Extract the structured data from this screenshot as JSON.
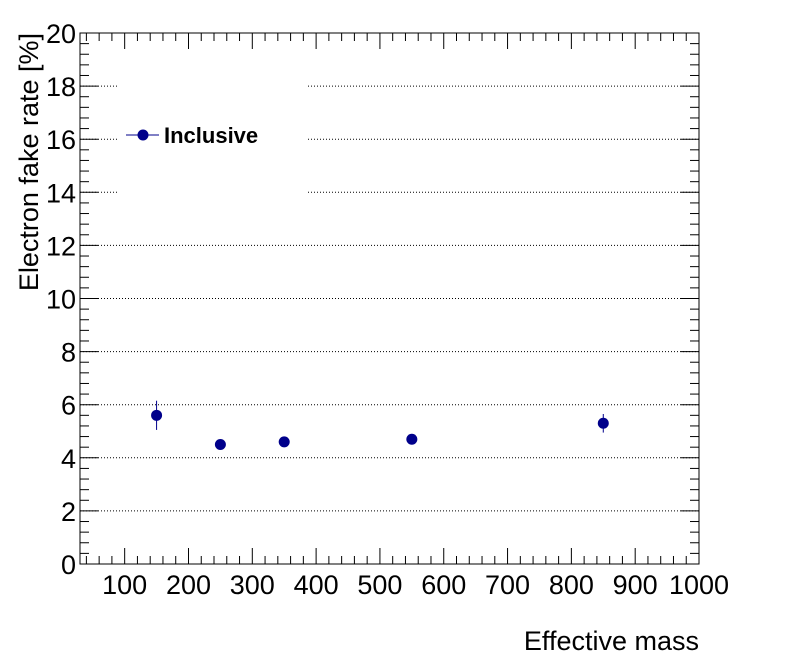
{
  "chart_data": {
    "type": "scatter",
    "xlabel": "Effective mass",
    "ylabel": "Electron fake rate [%]",
    "xlim": [
      30,
      1000
    ],
    "ylim": [
      0,
      20
    ],
    "x_ticks": [
      100,
      200,
      300,
      400,
      500,
      600,
      700,
      800,
      900,
      1000
    ],
    "y_ticks": [
      0,
      2,
      4,
      6,
      8,
      10,
      12,
      14,
      16,
      18,
      20
    ],
    "grid": "horizontal dotted at major y ticks",
    "legend": {
      "position": "top-left",
      "entries": [
        "Inclusive"
      ]
    },
    "series": [
      {
        "name": "Inclusive",
        "color": "#00008b",
        "marker": "filled-circle",
        "points": [
          {
            "x": 150,
            "y": 5.6,
            "yerr": 0.55
          },
          {
            "x": 250,
            "y": 4.5,
            "yerr": 0.12
          },
          {
            "x": 350,
            "y": 4.6,
            "yerr": 0.12
          },
          {
            "x": 550,
            "y": 4.7,
            "yerr": 0.15
          },
          {
            "x": 850,
            "y": 5.3,
            "yerr": 0.35
          }
        ]
      }
    ]
  }
}
